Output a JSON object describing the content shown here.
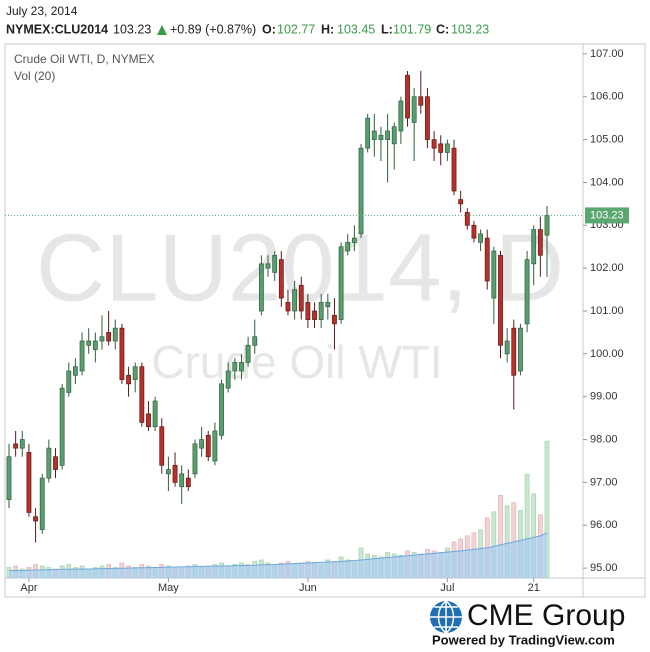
{
  "chart_data": {
    "type": "candlestick",
    "header": {
      "date": "July 23, 2014",
      "symbol": "NYMEX:CLU2014",
      "change": "+0.89 (+0.87%)",
      "open_label": "O:",
      "high_label": "H:",
      "low_label": "L:",
      "close_label": "C:"
    },
    "series_name": "Crude Oil WTI, D, NYMEX",
    "volume_name": "Vol (20)",
    "watermark": "CLU2014, D",
    "watermark_subtitle": "Crude Oil WTI",
    "categories": [
      null,
      null,
      null,
      "Apr",
      null,
      null,
      null,
      null,
      null,
      null,
      null,
      null,
      null,
      null,
      null,
      null,
      null,
      null,
      null,
      null,
      null,
      null,
      null,
      null,
      "May",
      null,
      null,
      null,
      null,
      null,
      null,
      null,
      null,
      null,
      null,
      null,
      null,
      null,
      null,
      null,
      null,
      null,
      null,
      null,
      null,
      "Jun",
      null,
      null,
      null,
      null,
      null,
      null,
      null,
      null,
      null,
      null,
      null,
      null,
      null,
      null,
      null,
      null,
      null,
      null,
      null,
      null,
      "Jul",
      null,
      null,
      null,
      null,
      null,
      null,
      null,
      null,
      null,
      null,
      null,
      null,
      "21",
      null,
      null
    ],
    "open": [
      96.6,
      97.9,
      97.8,
      97.7,
      96.2,
      95.9,
      97.1,
      97.6,
      97.4,
      99.1,
      99.5,
      99.6,
      100.2,
      100.1,
      100.3,
      100.5,
      100.3,
      100.6,
      99.5,
      99.4,
      99.7,
      98.6,
      98.3,
      98.3,
      97.2,
      97.4,
      96.9,
      97.1,
      97.2,
      97.8,
      98.1,
      97.5,
      98.1,
      99.2,
      99.6,
      99.6,
      99.8,
      100.2,
      101.0,
      102.0,
      101.9,
      102.2,
      101.2,
      101.0,
      101.6,
      101.2,
      101.0,
      100.8,
      101.1,
      100.9,
      100.8,
      102.4,
      102.6,
      102.8,
      104.8,
      105.0,
      105.0,
      105.0,
      104.9,
      105.2,
      106.5,
      105.4,
      106.0,
      106.0,
      105.0,
      104.9,
      104.7,
      104.8,
      103.6,
      103.3,
      103.0,
      102.6,
      102.7,
      101.3,
      102.3,
      100.0,
      100.6,
      99.6,
      100.7,
      102.1,
      102.9,
      102.77
    ],
    "high": [
      97.9,
      98.2,
      98.2,
      97.9,
      96.4,
      97.2,
      98.0,
      97.8,
      99.3,
      99.8,
      99.9,
      100.5,
      100.6,
      100.5,
      100.9,
      101.0,
      100.8,
      100.7,
      99.7,
      99.8,
      99.8,
      98.9,
      99.0,
      98.5,
      97.6,
      97.7,
      97.4,
      97.3,
      98.0,
      98.3,
      98.2,
      98.4,
      99.4,
      99.8,
      99.9,
      100.0,
      100.4,
      100.8,
      102.3,
      102.3,
      102.4,
      102.4,
      101.5,
      101.7,
      101.8,
      101.4,
      101.2,
      101.4,
      101.4,
      101.3,
      102.6,
      102.8,
      103.0,
      104.9,
      105.6,
      105.6,
      105.3,
      105.6,
      105.4,
      106.0,
      106.6,
      106.2,
      106.6,
      106.2,
      105.2,
      105.1,
      105.0,
      105.0,
      103.8,
      103.4,
      103.1,
      102.9,
      102.9,
      102.5,
      102.4,
      100.6,
      100.8,
      100.7,
      102.4,
      103.0,
      103.2,
      103.45
    ],
    "low": [
      96.4,
      97.6,
      97.6,
      96.2,
      95.6,
      95.8,
      97.0,
      97.1,
      97.3,
      99.0,
      99.3,
      99.5,
      100.0,
      99.8,
      100.1,
      100.2,
      100.1,
      99.3,
      99.0,
      99.1,
      98.3,
      98.2,
      98.2,
      97.2,
      96.8,
      96.9,
      96.5,
      96.8,
      97.1,
      97.6,
      97.5,
      97.4,
      98.0,
      99.1,
      99.4,
      99.4,
      99.7,
      100.0,
      100.9,
      101.8,
      101.7,
      101.1,
      100.9,
      100.8,
      100.8,
      100.6,
      100.6,
      100.6,
      100.8,
      100.1,
      100.7,
      102.3,
      102.4,
      102.7,
      104.7,
      104.6,
      104.5,
      104.0,
      104.3,
      104.9,
      105.3,
      104.5,
      105.6,
      104.8,
      104.5,
      104.4,
      104.5,
      103.7,
      103.3,
      102.9,
      102.6,
      102.4,
      101.5,
      100.7,
      99.9,
      99.8,
      98.7,
      99.5,
      100.5,
      101.6,
      101.8,
      101.79
    ],
    "close": [
      97.6,
      97.8,
      98.0,
      96.3,
      96.1,
      97.1,
      97.8,
      97.3,
      99.2,
      99.6,
      99.7,
      100.3,
      100.3,
      100.3,
      100.4,
      100.3,
      100.6,
      99.4,
      99.3,
      99.7,
      98.4,
      98.3,
      98.9,
      97.4,
      97.3,
      97.0,
      97.2,
      96.9,
      97.9,
      98.0,
      97.6,
      98.2,
      99.3,
      99.6,
      99.8,
      99.8,
      100.2,
      100.4,
      102.1,
      102.1,
      102.3,
      101.3,
      101.0,
      101.5,
      101.0,
      100.8,
      100.8,
      101.2,
      101.2,
      100.7,
      102.5,
      102.6,
      102.7,
      104.8,
      105.5,
      105.2,
      105.1,
      105.2,
      105.3,
      105.9,
      105.5,
      106.0,
      105.8,
      105.0,
      104.8,
      104.7,
      104.9,
      103.8,
      103.5,
      103.0,
      102.7,
      102.8,
      101.7,
      102.4,
      100.2,
      100.3,
      99.5,
      100.6,
      102.2,
      102.9,
      102.3,
      103.23
    ],
    "volume": [
      7,
      8,
      6,
      7,
      9,
      8,
      7,
      6,
      8,
      9,
      7,
      8,
      6,
      7,
      8,
      9,
      7,
      10,
      8,
      7,
      9,
      8,
      7,
      9,
      8,
      7,
      6,
      8,
      9,
      7,
      8,
      9,
      10,
      8,
      9,
      10,
      9,
      11,
      12,
      10,
      9,
      10,
      11,
      9,
      10,
      11,
      10,
      9,
      12,
      11,
      14,
      12,
      11,
      20,
      16,
      15,
      14,
      17,
      16,
      15,
      18,
      17,
      16,
      19,
      18,
      17,
      20,
      24,
      26,
      28,
      30,
      32,
      40,
      44,
      55,
      48,
      50,
      45,
      69,
      56,
      42,
      91
    ],
    "volume_ma": [
      5,
      5,
      5,
      5.2,
      5.3,
      5.4,
      5.5,
      5.6,
      5.7,
      5.8,
      5.9,
      6,
      6,
      6.1,
      6.2,
      6.3,
      6.4,
      6.5,
      6.6,
      6.7,
      6.8,
      6.9,
      7,
      7.1,
      7.2,
      7.3,
      7.4,
      7.5,
      7.6,
      7.7,
      7.8,
      7.9,
      8,
      8.1,
      8.2,
      8.3,
      8.4,
      8.5,
      8.7,
      8.9,
      9,
      9.2,
      9.4,
      9.6,
      9.8,
      10,
      10.2,
      10.4,
      10.6,
      10.8,
      11,
      11.3,
      11.6,
      12,
      12.4,
      12.8,
      13.2,
      13.6,
      14,
      14.4,
      14.8,
      15.2,
      15.6,
      16,
      16.4,
      16.8,
      17.2,
      17.6,
      18,
      18.5,
      19,
      19.5,
      20,
      21,
      22,
      23,
      24,
      25,
      26,
      27,
      28,
      30
    ],
    "ylim": [
      94.77,
      107.23
    ],
    "yticks": [
      {
        "value": 95,
        "label": "95.00"
      },
      {
        "value": 96,
        "label": "96.00"
      },
      {
        "value": 97,
        "label": "97.00"
      },
      {
        "value": 98,
        "label": "98.00"
      },
      {
        "value": 99,
        "label": "99.00"
      },
      {
        "value": 100,
        "label": "100.00"
      },
      {
        "value": 101,
        "label": "101.00"
      },
      {
        "value": 102,
        "label": "102.00"
      },
      {
        "value": 103,
        "label": "103.00"
      },
      {
        "value": 104,
        "label": "104.00"
      },
      {
        "value": 105,
        "label": "105.00"
      },
      {
        "value": 106,
        "label": "106.00"
      },
      {
        "value": 107,
        "label": "107.00"
      }
    ],
    "y2lim": [
      0,
      355
    ],
    "grid": false,
    "up_color": "#5a9e6f",
    "down_color": "#b8302a",
    "volume_up_color": "#c9e6cf",
    "volume_down_color": "#f1d3d6",
    "volume_ma_color": "#a9cdee",
    "footer": {
      "brand": "CME Group",
      "credit": "Powered by TradingView.com"
    }
  }
}
